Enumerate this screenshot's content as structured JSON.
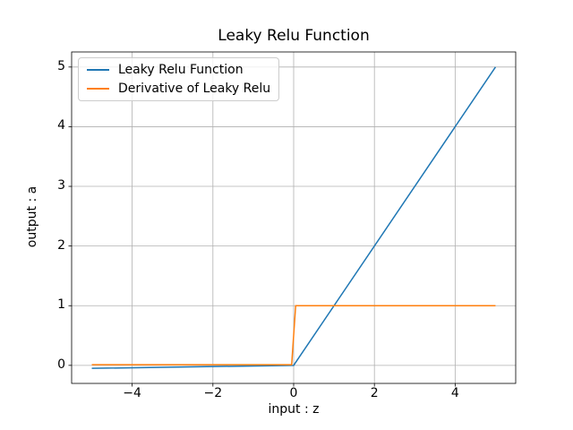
{
  "figure": {
    "background": "#ffffff",
    "text_color": "#000000",
    "spine_color": "#000000"
  },
  "chart_data": {
    "type": "line",
    "title": "Leaky Relu Function",
    "xlabel": "input : z",
    "ylabel": "output : a",
    "xlim": [
      -5.5,
      5.5
    ],
    "ylim": [
      -0.3025,
      5.2525
    ],
    "xticks": {
      "values": [
        -4,
        -2,
        0,
        2,
        4
      ],
      "labels": [
        "−4",
        "−2",
        "0",
        "2",
        "4"
      ]
    },
    "yticks": {
      "values": [
        0,
        1,
        2,
        3,
        4,
        5
      ],
      "labels": [
        "0",
        "1",
        "2",
        "3",
        "4",
        "5"
      ]
    },
    "grid": true,
    "grid_color": "#b0b0b0",
    "legend": {
      "position": "upper left"
    },
    "series": [
      {
        "name": "Leaky Relu Function",
        "color": "#1f77b4",
        "linewidth": 1.5,
        "x": [
          -5,
          0,
          5
        ],
        "y": [
          -0.05,
          0,
          5
        ]
      },
      {
        "name": "Derivative of Leaky Relu",
        "color": "#ff7f0e",
        "linewidth": 1.5,
        "x": [
          -5,
          -0.05,
          0.05,
          5
        ],
        "y": [
          0.01,
          0.01,
          1,
          1
        ]
      }
    ]
  }
}
